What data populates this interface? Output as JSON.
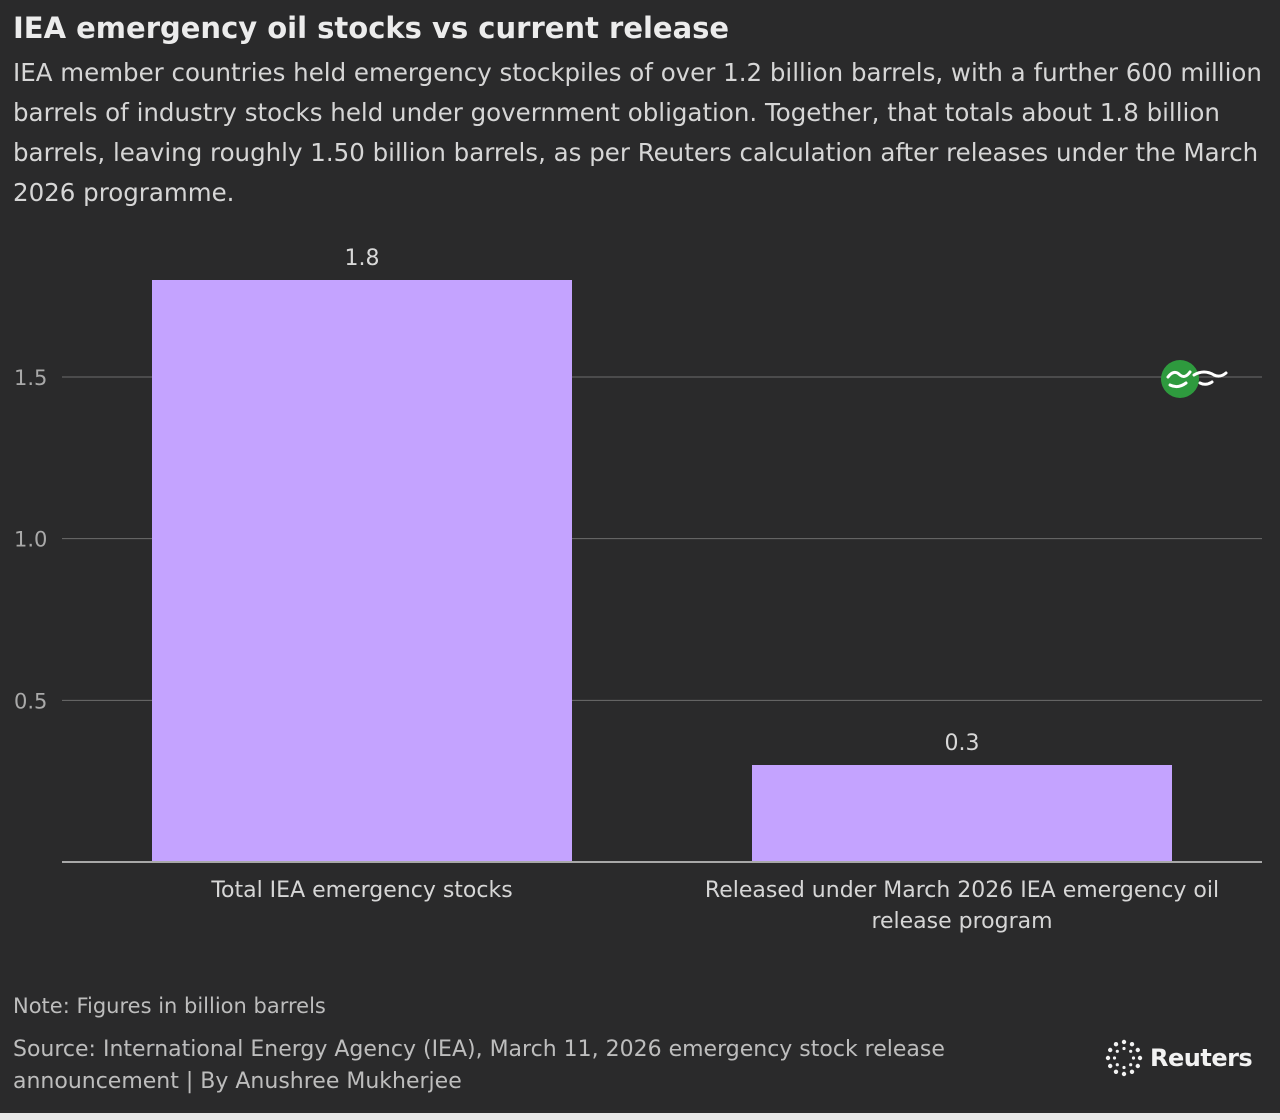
{
  "title": "IEA emergency oil stocks vs current release",
  "subtitle": "IEA member countries held emergency stockpiles of over 1.2 billion barrels, with a further 600 million barrels of industry stocks held under government obligation. Together, that totals about 1.8 billion barrels, leaving roughly 1.50 billion barrels, as per Reuters calculation after releases under the March 2026 programme.",
  "note": "Note: Figures in billion barrels",
  "source": "Source: International Energy Agency (IEA), March 11, 2026 emergency stock release announcement | By Anushree Mukherjee",
  "brand": "Reuters",
  "colors": {
    "background": "#2a2a2b",
    "bar": "#c4a3ff",
    "gridline": "#6c6c6c",
    "baseline": "#a8a8a8",
    "text": "#d6d6d6"
  },
  "chart_data": {
    "type": "bar",
    "categories": [
      [
        "Total IEA emergency stocks"
      ],
      [
        "Released under March 2026 IEA emergency oil",
        "release program"
      ]
    ],
    "values": [
      1.8,
      0.3
    ],
    "value_labels": [
      "1.8",
      "0.3"
    ],
    "yticks": [
      0.5,
      1.0,
      1.5
    ],
    "ytick_labels": [
      "0.5",
      "1.0",
      "1.5"
    ],
    "ylim": [
      0,
      1.8
    ],
    "grid": true,
    "legend": "none"
  }
}
